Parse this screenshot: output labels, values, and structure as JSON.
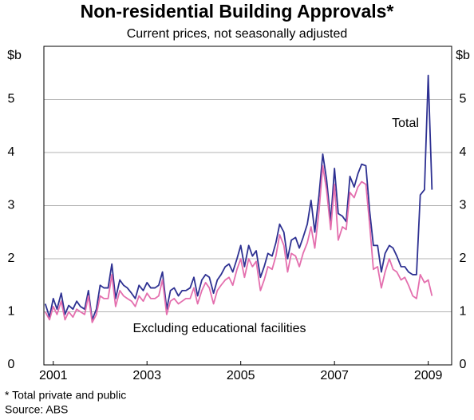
{
  "chart_data": {
    "type": "line",
    "title": "Non-residential Building Approvals*",
    "subtitle": "Current prices, not seasonally adjusted",
    "y_label": "$b",
    "y2_label": "$b",
    "x": [
      2001.33,
      2001.42,
      2001.5,
      2001.58,
      2001.67,
      2001.75,
      2001.83,
      2001.92,
      2002.0,
      2002.08,
      2002.17,
      2002.25,
      2002.33,
      2002.42,
      2002.5,
      2002.58,
      2002.67,
      2002.75,
      2002.83,
      2002.92,
      2003.0,
      2003.08,
      2003.17,
      2003.25,
      2003.33,
      2003.42,
      2003.5,
      2003.58,
      2003.67,
      2003.75,
      2003.83,
      2003.92,
      2004.0,
      2004.08,
      2004.17,
      2004.25,
      2004.33,
      2004.42,
      2004.5,
      2004.58,
      2004.67,
      2004.75,
      2004.83,
      2004.92,
      2005.0,
      2005.08,
      2005.17,
      2005.25,
      2005.33,
      2005.42,
      2005.5,
      2005.58,
      2005.67,
      2005.75,
      2005.83,
      2005.92,
      2006.0,
      2006.08,
      2006.17,
      2006.25,
      2006.33,
      2006.42,
      2006.5,
      2006.58,
      2006.67,
      2006.75,
      2006.83,
      2006.92,
      2007.0,
      2007.08,
      2007.17,
      2007.25,
      2007.33,
      2007.42,
      2007.5,
      2007.58,
      2007.67,
      2007.75,
      2007.83,
      2007.92,
      2008.0,
      2008.08,
      2008.17,
      2008.25,
      2008.33,
      2008.42,
      2008.5,
      2008.58,
      2008.67,
      2008.75,
      2008.83,
      2008.92,
      2009.0,
      2009.08,
      2009.17,
      2009.25,
      2009.33,
      2009.42,
      2009.5,
      2009.58
    ],
    "series": [
      {
        "name": "Total",
        "color": "#2e3192",
        "values": [
          1.15,
          0.9,
          1.25,
          1.05,
          1.35,
          0.95,
          1.12,
          1.05,
          1.2,
          1.1,
          1.05,
          1.4,
          0.85,
          1.05,
          1.5,
          1.45,
          1.45,
          1.9,
          1.25,
          1.6,
          1.5,
          1.45,
          1.35,
          1.25,
          1.5,
          1.4,
          1.55,
          1.45,
          1.45,
          1.5,
          1.75,
          1.05,
          1.4,
          1.45,
          1.3,
          1.4,
          1.4,
          1.45,
          1.65,
          1.3,
          1.6,
          1.7,
          1.65,
          1.35,
          1.6,
          1.7,
          1.85,
          1.9,
          1.75,
          2.0,
          2.25,
          1.85,
          2.25,
          2.05,
          2.15,
          1.65,
          1.85,
          2.1,
          2.05,
          2.3,
          2.65,
          2.5,
          2.0,
          2.35,
          2.4,
          2.2,
          2.4,
          2.65,
          3.1,
          2.5,
          3.2,
          3.97,
          3.5,
          2.7,
          3.7,
          2.85,
          2.8,
          2.7,
          3.55,
          3.35,
          3.6,
          3.78,
          3.75,
          2.9,
          2.25,
          2.25,
          1.75,
          2.1,
          2.25,
          2.2,
          2.05,
          1.85,
          1.85,
          1.75,
          1.7,
          1.7,
          3.2,
          3.3,
          5.45,
          3.3
        ]
      },
      {
        "name": "Excluding educational facilities",
        "color": "#e46fae",
        "values": [
          1.0,
          0.85,
          1.1,
          0.95,
          1.2,
          0.85,
          1.0,
          0.9,
          1.05,
          1.0,
          0.95,
          1.3,
          0.8,
          0.95,
          1.3,
          1.25,
          1.25,
          1.7,
          1.1,
          1.4,
          1.3,
          1.25,
          1.2,
          1.1,
          1.3,
          1.2,
          1.35,
          1.25,
          1.25,
          1.3,
          1.6,
          0.95,
          1.2,
          1.25,
          1.15,
          1.2,
          1.25,
          1.25,
          1.45,
          1.15,
          1.4,
          1.55,
          1.45,
          1.15,
          1.4,
          1.5,
          1.6,
          1.65,
          1.5,
          1.8,
          2.0,
          1.65,
          2.0,
          1.85,
          1.95,
          1.4,
          1.6,
          1.85,
          1.8,
          2.05,
          2.45,
          2.25,
          1.75,
          2.1,
          2.05,
          1.85,
          2.1,
          2.3,
          2.6,
          2.2,
          2.9,
          3.75,
          3.3,
          2.55,
          3.4,
          2.35,
          2.6,
          2.55,
          3.25,
          3.15,
          3.35,
          3.45,
          3.4,
          2.65,
          1.8,
          1.85,
          1.45,
          1.75,
          2.0,
          1.8,
          1.75,
          1.6,
          1.65,
          1.5,
          1.3,
          1.25,
          1.7,
          1.55,
          1.6,
          1.3
        ]
      }
    ],
    "xlim": [
      2001.3,
      2010.0
    ],
    "xticks": [
      {
        "value": 2001.5,
        "label": "2001"
      },
      {
        "value": 2003.5,
        "label": "2003"
      },
      {
        "value": 2005.5,
        "label": "2005"
      },
      {
        "value": 2007.5,
        "label": "2007"
      },
      {
        "value": 2009.5,
        "label": "2009"
      }
    ],
    "ylim": [
      0,
      6
    ],
    "yticks": [
      0,
      1,
      2,
      3,
      4,
      5
    ],
    "grid": true,
    "footnote": "*    Total private and public",
    "source": "Source: ABS"
  }
}
